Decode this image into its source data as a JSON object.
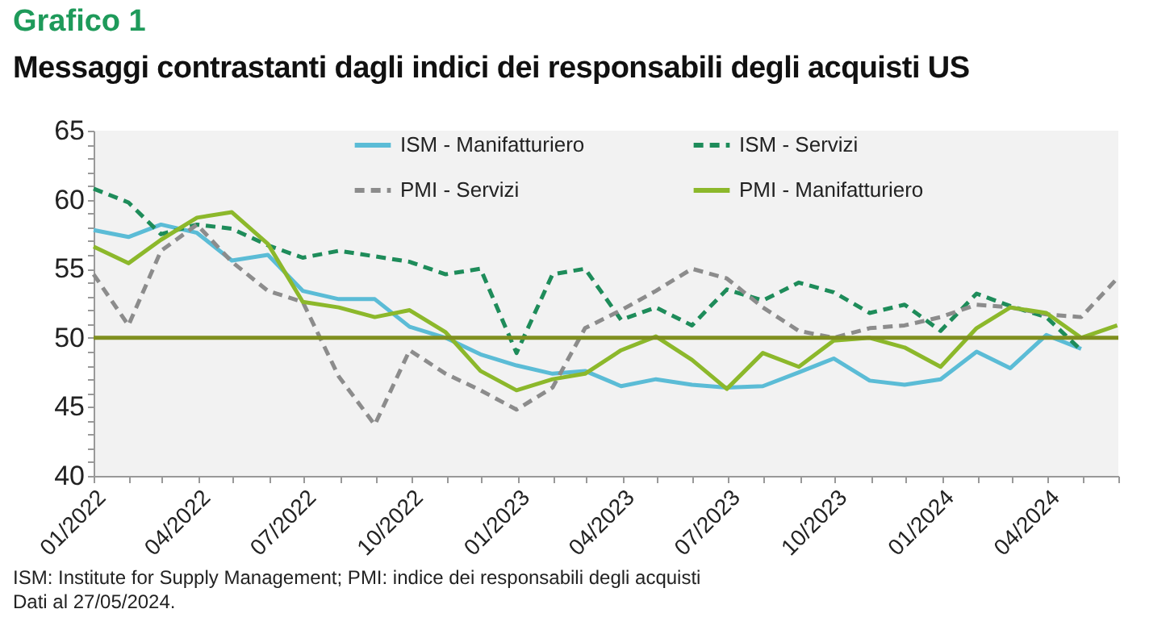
{
  "chart_data": {
    "type": "line",
    "title": "Grafico 1",
    "subtitle": "Messaggi contrastanti dagli indici dei responsabili degli acquisti US",
    "annotations": [
      "ISM: Institute for Supply Management; PMI: indice dei responsabili degli acquisti",
      "Dati al 27/05/2024."
    ],
    "x": [
      "2022-01-01",
      "2022-01-31",
      "2022-02-28",
      "2022-03-31",
      "2022-04-30",
      "2022-05-31",
      "2022-06-30",
      "2022-07-31",
      "2022-08-31",
      "2022-09-30",
      "2022-10-31",
      "2022-11-30",
      "2022-12-31",
      "2023-01-31",
      "2023-02-28",
      "2023-03-31",
      "2023-04-30",
      "2023-05-31",
      "2023-06-30",
      "2023-07-31",
      "2023-08-31",
      "2023-09-30",
      "2023-10-31",
      "2023-11-30",
      "2023-12-31",
      "2024-01-31",
      "2024-02-29",
      "2024-03-31",
      "2024-04-30",
      "2024-05-31"
    ],
    "series": [
      {
        "name": "ISM - Manifatturiero",
        "color": "#5bbcd6",
        "line_style": "solid",
        "values": [
          57.8,
          57.3,
          58.2,
          57.6,
          55.6,
          56.0,
          53.4,
          52.8,
          52.8,
          50.8,
          50.0,
          48.8,
          48.0,
          47.4,
          47.6,
          46.5,
          47.0,
          46.6,
          46.4,
          46.5,
          47.5,
          48.5,
          46.9,
          46.6,
          47.0,
          49.0,
          47.8,
          50.2,
          49.2,
          null
        ]
      },
      {
        "name": "ISM - Servizi",
        "color": "#1e8c5a",
        "line_style": "dashed",
        "values": [
          60.8,
          59.8,
          57.5,
          58.2,
          57.9,
          56.7,
          55.8,
          56.3,
          55.9,
          55.5,
          54.6,
          55.0,
          48.9,
          54.6,
          55.0,
          51.3,
          52.2,
          50.9,
          53.5,
          52.7,
          54.0,
          53.3,
          51.8,
          52.4,
          50.5,
          53.2,
          52.3,
          51.5,
          49.1,
          null
        ]
      },
      {
        "name": "PMI - Servizi",
        "color": "#8c8c8c",
        "line_style": "dashed",
        "values": [
          54.6,
          50.9,
          56.3,
          58.2,
          55.5,
          53.4,
          52.6,
          47.2,
          43.7,
          49.1,
          47.4,
          46.2,
          44.8,
          46.4,
          50.7,
          52.0,
          53.4,
          55.0,
          54.3,
          52.2,
          50.5,
          50.0,
          50.7,
          50.9,
          51.5,
          52.4,
          52.2,
          51.7,
          51.5,
          54.3
        ]
      },
      {
        "name": "PMI - Manifatturiero",
        "color": "#8cb82b",
        "line_style": "solid",
        "values": [
          56.6,
          55.4,
          57.1,
          58.7,
          59.1,
          56.8,
          52.6,
          52.2,
          51.5,
          52.0,
          50.4,
          47.6,
          46.2,
          47.0,
          47.4,
          49.1,
          50.1,
          48.4,
          46.3,
          48.9,
          47.9,
          49.8,
          50.0,
          49.3,
          47.9,
          50.7,
          52.2,
          51.8,
          50.0,
          50.9
        ]
      }
    ],
    "xlim": [
      "2022-01-01",
      "2024-06-01"
    ],
    "xticks": [
      {
        "value": "2022-01-01",
        "label": "01/2022"
      },
      {
        "value": "2022-02-01",
        "label": null
      },
      {
        "value": "2022-03-01",
        "label": null
      },
      {
        "value": "2022-04-01",
        "label": "04/2022"
      },
      {
        "value": "2022-05-01",
        "label": null
      },
      {
        "value": "2022-06-01",
        "label": null
      },
      {
        "value": "2022-07-01",
        "label": "07/2022"
      },
      {
        "value": "2022-08-01",
        "label": null
      },
      {
        "value": "2022-09-01",
        "label": null
      },
      {
        "value": "2022-10-01",
        "label": "10/2022"
      },
      {
        "value": "2022-11-01",
        "label": null
      },
      {
        "value": "2022-12-01",
        "label": null
      },
      {
        "value": "2023-01-01",
        "label": "01/2023"
      },
      {
        "value": "2023-02-01",
        "label": null
      },
      {
        "value": "2023-03-01",
        "label": null
      },
      {
        "value": "2023-04-01",
        "label": "04/2023"
      },
      {
        "value": "2023-05-01",
        "label": null
      },
      {
        "value": "2023-06-01",
        "label": null
      },
      {
        "value": "2023-07-01",
        "label": "07/2023"
      },
      {
        "value": "2023-08-01",
        "label": null
      },
      {
        "value": "2023-09-01",
        "label": null
      },
      {
        "value": "2023-10-01",
        "label": "10/2023"
      },
      {
        "value": "2023-11-01",
        "label": null
      },
      {
        "value": "2023-12-01",
        "label": null
      },
      {
        "value": "2024-01-01",
        "label": "01/2024"
      },
      {
        "value": "2024-02-01",
        "label": null
      },
      {
        "value": "2024-03-01",
        "label": null
      },
      {
        "value": "2024-04-01",
        "label": "04/2024"
      },
      {
        "value": "2024-05-01",
        "label": null
      },
      {
        "value": "2024-06-01",
        "label": null
      }
    ],
    "ylim": [
      40,
      65
    ],
    "yticks": [
      40,
      {
        "value": 41,
        "label": null
      },
      {
        "value": 42,
        "label": null
      },
      {
        "value": 43,
        "label": null
      },
      {
        "value": 44,
        "label": null
      },
      45,
      {
        "value": 46,
        "label": null
      },
      {
        "value": 47,
        "label": null
      },
      {
        "value": 48,
        "label": null
      },
      {
        "value": 49,
        "label": null
      },
      50,
      {
        "value": 51,
        "label": null
      },
      {
        "value": 52,
        "label": null
      },
      {
        "value": 53,
        "label": null
      },
      {
        "value": 54,
        "label": null
      },
      55,
      {
        "value": 56,
        "label": null
      },
      {
        "value": 57,
        "label": null
      },
      {
        "value": 58,
        "label": null
      },
      {
        "value": 59,
        "label": null
      },
      60,
      {
        "value": 61,
        "label": null
      },
      {
        "value": 62,
        "label": null
      },
      {
        "value": 63,
        "label": null
      },
      {
        "value": 64,
        "label": null
      },
      65
    ],
    "ref_lines": [
      {
        "axis": "y",
        "value": 50,
        "color": "#7f8f1f",
        "line_style": "solid"
      }
    ],
    "legend": "top",
    "marker": "none",
    "grid": false
  }
}
